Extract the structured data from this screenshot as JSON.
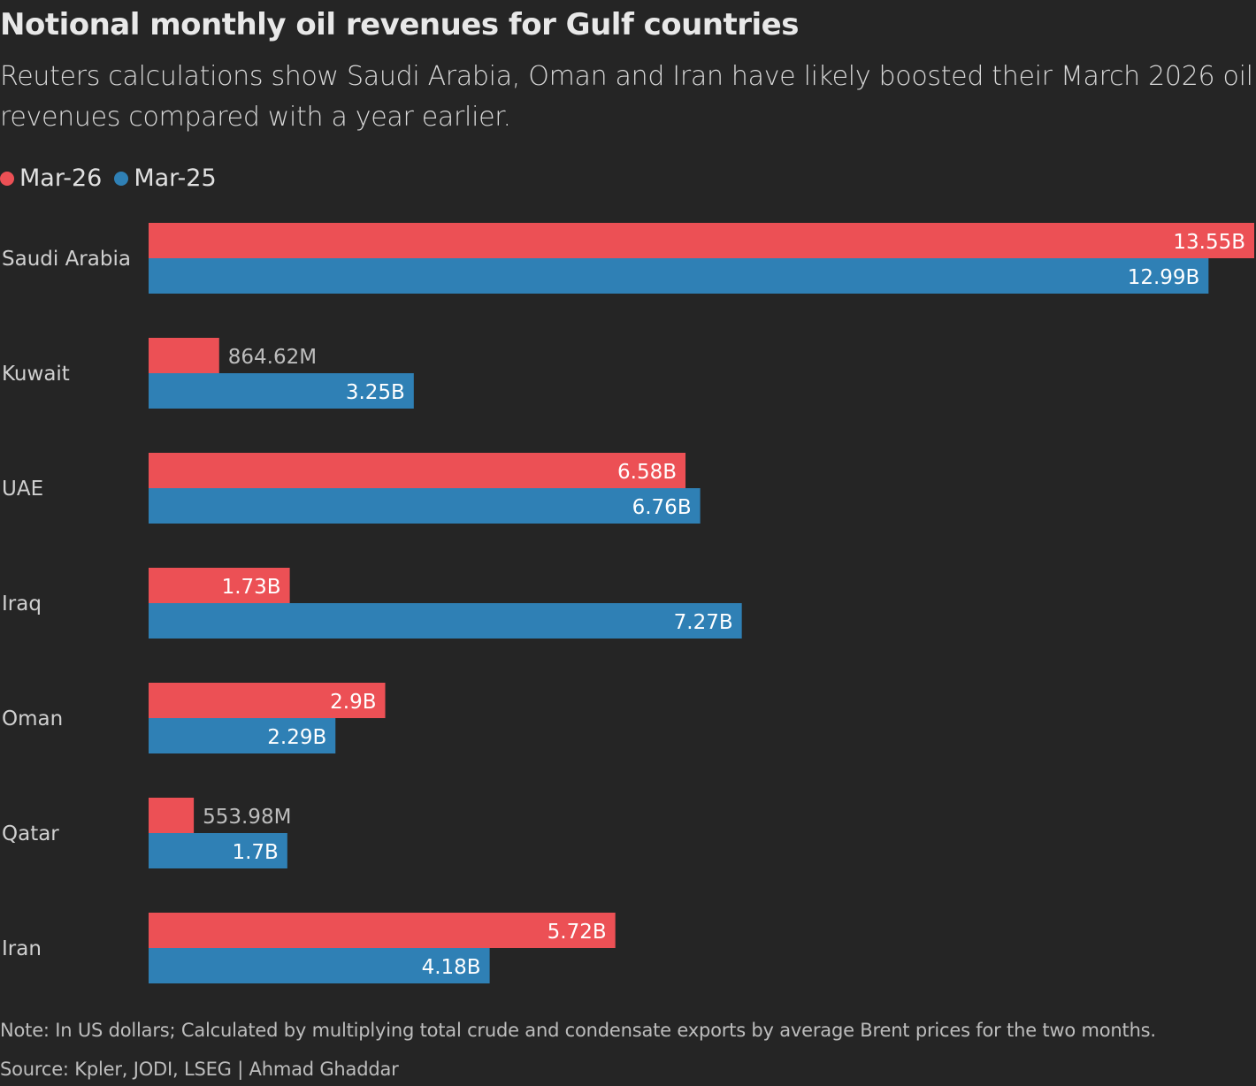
{
  "colors": {
    "background": "#252525",
    "Mar-26": "#ec5055",
    "Mar-25": "#2f80b5",
    "label_inside": "#ffffff",
    "label_outside": "#bdbdbd"
  },
  "chart_data": {
    "type": "bar",
    "orientation": "horizontal",
    "title": "Notional monthly oil revenues for Gulf countries",
    "subtitle": "Reuters calculations show Saudi Arabia, Oman and Iran have likely boosted their March 2026 oil revenues compared with a year earlier.",
    "legend_position": "top-left",
    "grid": false,
    "categories": [
      "Saudi Arabia",
      "Kuwait",
      "UAE",
      "Iraq",
      "Oman",
      "Qatar",
      "Iran"
    ],
    "unit": "US dollars",
    "series": [
      {
        "name": "Mar-26",
        "values": [
          13.55,
          0.86462,
          6.58,
          1.73,
          2.9,
          0.55398,
          5.72
        ],
        "labels": [
          "13.55B",
          "864.62M",
          "6.58B",
          "1.73B",
          "2.9B",
          "553.98M",
          "5.72B"
        ]
      },
      {
        "name": "Mar-25",
        "values": [
          12.99,
          3.25,
          6.76,
          7.27,
          2.29,
          1.7,
          4.18
        ],
        "labels": [
          "12.99B",
          "3.25B",
          "6.76B",
          "7.27B",
          "2.29B",
          "1.7B",
          "4.18B"
        ]
      }
    ]
  },
  "note": "Note: In US dollars; Calculated by multiplying total crude and condensate exports by average Brent prices for the two months.",
  "source": "Source: Kpler, JODI, LSEG | Ahmad Ghaddar"
}
